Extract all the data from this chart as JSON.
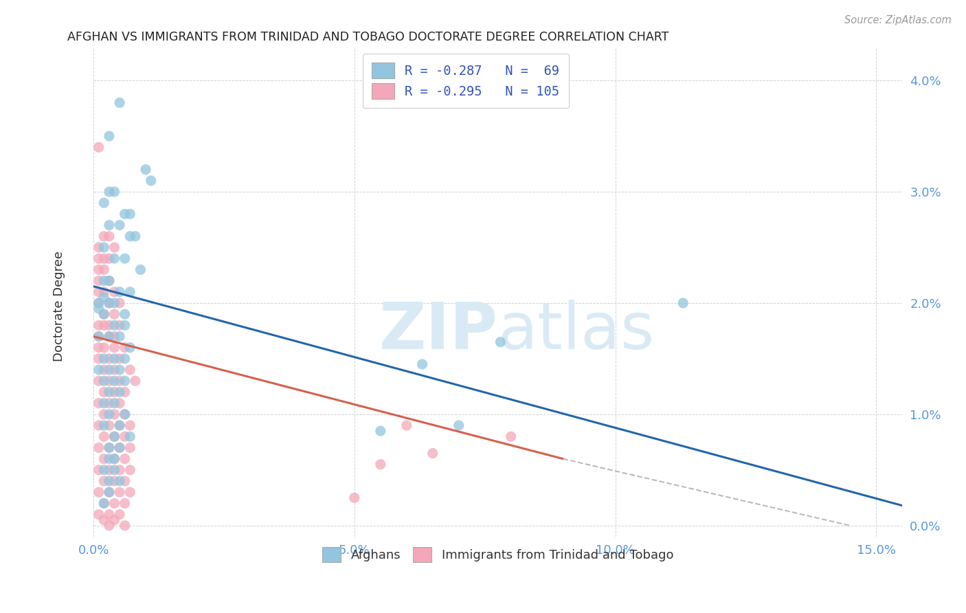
{
  "title": "AFGHAN VS IMMIGRANTS FROM TRINIDAD AND TOBAGO DOCTORATE DEGREE CORRELATION CHART",
  "source": "Source: ZipAtlas.com",
  "xlabel_ticks": [
    "0.0%",
    "5.0%",
    "10.0%",
    "15.0%"
  ],
  "xlabel_tick_vals": [
    0.0,
    0.05,
    0.1,
    0.15
  ],
  "ylabel_ticks": [
    "0.0%",
    "1.0%",
    "2.0%",
    "3.0%",
    "4.0%"
  ],
  "ylabel_tick_vals": [
    0.0,
    0.01,
    0.02,
    0.03,
    0.04
  ],
  "xlim": [
    0.0,
    0.155
  ],
  "ylim": [
    -0.001,
    0.043
  ],
  "legend_blue_label": "R = -0.287   N =  69",
  "legend_pink_label": "R = -0.295   N = 105",
  "legend_bottom_blue": "Afghans",
  "legend_bottom_pink": "Immigrants from Trinidad and Tobago",
  "blue_color": "#92c5de",
  "pink_color": "#f4a7b9",
  "blue_line_color": "#2166ac",
  "pink_line_color": "#d6604d",
  "watermark_color": "#daeaf5",
  "blue_scatter": [
    [
      0.005,
      0.038
    ],
    [
      0.003,
      0.035
    ],
    [
      0.01,
      0.032
    ],
    [
      0.011,
      0.031
    ],
    [
      0.003,
      0.03
    ],
    [
      0.004,
      0.03
    ],
    [
      0.002,
      0.029
    ],
    [
      0.007,
      0.028
    ],
    [
      0.006,
      0.028
    ],
    [
      0.003,
      0.027
    ],
    [
      0.005,
      0.027
    ],
    [
      0.007,
      0.026
    ],
    [
      0.008,
      0.026
    ],
    [
      0.002,
      0.025
    ],
    [
      0.004,
      0.024
    ],
    [
      0.006,
      0.024
    ],
    [
      0.009,
      0.023
    ],
    [
      0.002,
      0.022
    ],
    [
      0.003,
      0.022
    ],
    [
      0.005,
      0.021
    ],
    [
      0.007,
      0.021
    ],
    [
      0.001,
      0.02
    ],
    [
      0.003,
      0.02
    ],
    [
      0.004,
      0.02
    ],
    [
      0.006,
      0.019
    ],
    [
      0.002,
      0.0205
    ],
    [
      0.001,
      0.0195
    ],
    [
      0.002,
      0.019
    ],
    [
      0.004,
      0.018
    ],
    [
      0.006,
      0.018
    ],
    [
      0.001,
      0.017
    ],
    [
      0.003,
      0.017
    ],
    [
      0.005,
      0.017
    ],
    [
      0.007,
      0.016
    ],
    [
      0.002,
      0.015
    ],
    [
      0.004,
      0.015
    ],
    [
      0.006,
      0.015
    ],
    [
      0.001,
      0.014
    ],
    [
      0.003,
      0.014
    ],
    [
      0.005,
      0.014
    ],
    [
      0.002,
      0.013
    ],
    [
      0.004,
      0.013
    ],
    [
      0.006,
      0.013
    ],
    [
      0.003,
      0.012
    ],
    [
      0.005,
      0.012
    ],
    [
      0.002,
      0.011
    ],
    [
      0.004,
      0.011
    ],
    [
      0.003,
      0.01
    ],
    [
      0.006,
      0.01
    ],
    [
      0.002,
      0.009
    ],
    [
      0.005,
      0.009
    ],
    [
      0.004,
      0.008
    ],
    [
      0.007,
      0.008
    ],
    [
      0.003,
      0.007
    ],
    [
      0.005,
      0.007
    ],
    [
      0.003,
      0.006
    ],
    [
      0.004,
      0.006
    ],
    [
      0.002,
      0.005
    ],
    [
      0.004,
      0.005
    ],
    [
      0.003,
      0.004
    ],
    [
      0.005,
      0.004
    ],
    [
      0.003,
      0.003
    ],
    [
      0.002,
      0.002
    ],
    [
      0.113,
      0.02
    ],
    [
      0.07,
      0.009
    ],
    [
      0.063,
      0.0145
    ],
    [
      0.078,
      0.0165
    ],
    [
      0.055,
      0.0085
    ]
  ],
  "pink_scatter": [
    [
      0.001,
      0.034
    ],
    [
      0.002,
      0.026
    ],
    [
      0.003,
      0.026
    ],
    [
      0.001,
      0.025
    ],
    [
      0.004,
      0.025
    ],
    [
      0.001,
      0.024
    ],
    [
      0.002,
      0.024
    ],
    [
      0.003,
      0.024
    ],
    [
      0.001,
      0.023
    ],
    [
      0.002,
      0.023
    ],
    [
      0.001,
      0.022
    ],
    [
      0.003,
      0.022
    ],
    [
      0.001,
      0.021
    ],
    [
      0.002,
      0.021
    ],
    [
      0.004,
      0.021
    ],
    [
      0.001,
      0.02
    ],
    [
      0.003,
      0.02
    ],
    [
      0.005,
      0.02
    ],
    [
      0.002,
      0.019
    ],
    [
      0.004,
      0.019
    ],
    [
      0.001,
      0.018
    ],
    [
      0.002,
      0.018
    ],
    [
      0.003,
      0.018
    ],
    [
      0.005,
      0.018
    ],
    [
      0.001,
      0.017
    ],
    [
      0.003,
      0.017
    ],
    [
      0.004,
      0.017
    ],
    [
      0.001,
      0.016
    ],
    [
      0.002,
      0.016
    ],
    [
      0.004,
      0.016
    ],
    [
      0.006,
      0.016
    ],
    [
      0.001,
      0.015
    ],
    [
      0.003,
      0.015
    ],
    [
      0.005,
      0.015
    ],
    [
      0.002,
      0.014
    ],
    [
      0.004,
      0.014
    ],
    [
      0.007,
      0.014
    ],
    [
      0.001,
      0.013
    ],
    [
      0.003,
      0.013
    ],
    [
      0.005,
      0.013
    ],
    [
      0.002,
      0.012
    ],
    [
      0.004,
      0.012
    ],
    [
      0.006,
      0.012
    ],
    [
      0.001,
      0.011
    ],
    [
      0.003,
      0.011
    ],
    [
      0.005,
      0.011
    ],
    [
      0.002,
      0.01
    ],
    [
      0.004,
      0.01
    ],
    [
      0.006,
      0.01
    ],
    [
      0.001,
      0.009
    ],
    [
      0.003,
      0.009
    ],
    [
      0.005,
      0.009
    ],
    [
      0.007,
      0.009
    ],
    [
      0.002,
      0.008
    ],
    [
      0.004,
      0.008
    ],
    [
      0.006,
      0.008
    ],
    [
      0.001,
      0.007
    ],
    [
      0.003,
      0.007
    ],
    [
      0.005,
      0.007
    ],
    [
      0.007,
      0.007
    ],
    [
      0.002,
      0.006
    ],
    [
      0.004,
      0.006
    ],
    [
      0.006,
      0.006
    ],
    [
      0.001,
      0.005
    ],
    [
      0.003,
      0.005
    ],
    [
      0.005,
      0.005
    ],
    [
      0.007,
      0.005
    ],
    [
      0.002,
      0.004
    ],
    [
      0.004,
      0.004
    ],
    [
      0.006,
      0.004
    ],
    [
      0.001,
      0.003
    ],
    [
      0.003,
      0.003
    ],
    [
      0.005,
      0.003
    ],
    [
      0.007,
      0.003
    ],
    [
      0.002,
      0.002
    ],
    [
      0.004,
      0.002
    ],
    [
      0.006,
      0.002
    ],
    [
      0.001,
      0.001
    ],
    [
      0.003,
      0.001
    ],
    [
      0.005,
      0.001
    ],
    [
      0.002,
      0.0005
    ],
    [
      0.004,
      0.0005
    ],
    [
      0.003,
      0.0
    ],
    [
      0.006,
      0.0
    ],
    [
      0.008,
      0.013
    ],
    [
      0.06,
      0.009
    ],
    [
      0.065,
      0.0065
    ],
    [
      0.05,
      0.0025
    ],
    [
      0.08,
      0.008
    ],
    [
      0.055,
      0.0055
    ]
  ],
  "blue_line": {
    "x0": 0.0,
    "y0": 0.0215,
    "x1": 0.155,
    "y1": 0.0018
  },
  "pink_line_solid": {
    "x0": 0.0,
    "y0": 0.017,
    "x1": 0.09,
    "y1": 0.006
  },
  "pink_line_dash": {
    "x0": 0.09,
    "y0": 0.006,
    "x1": 0.145,
    "y1": 0.0
  },
  "dashed_color": "#bbbbbb"
}
